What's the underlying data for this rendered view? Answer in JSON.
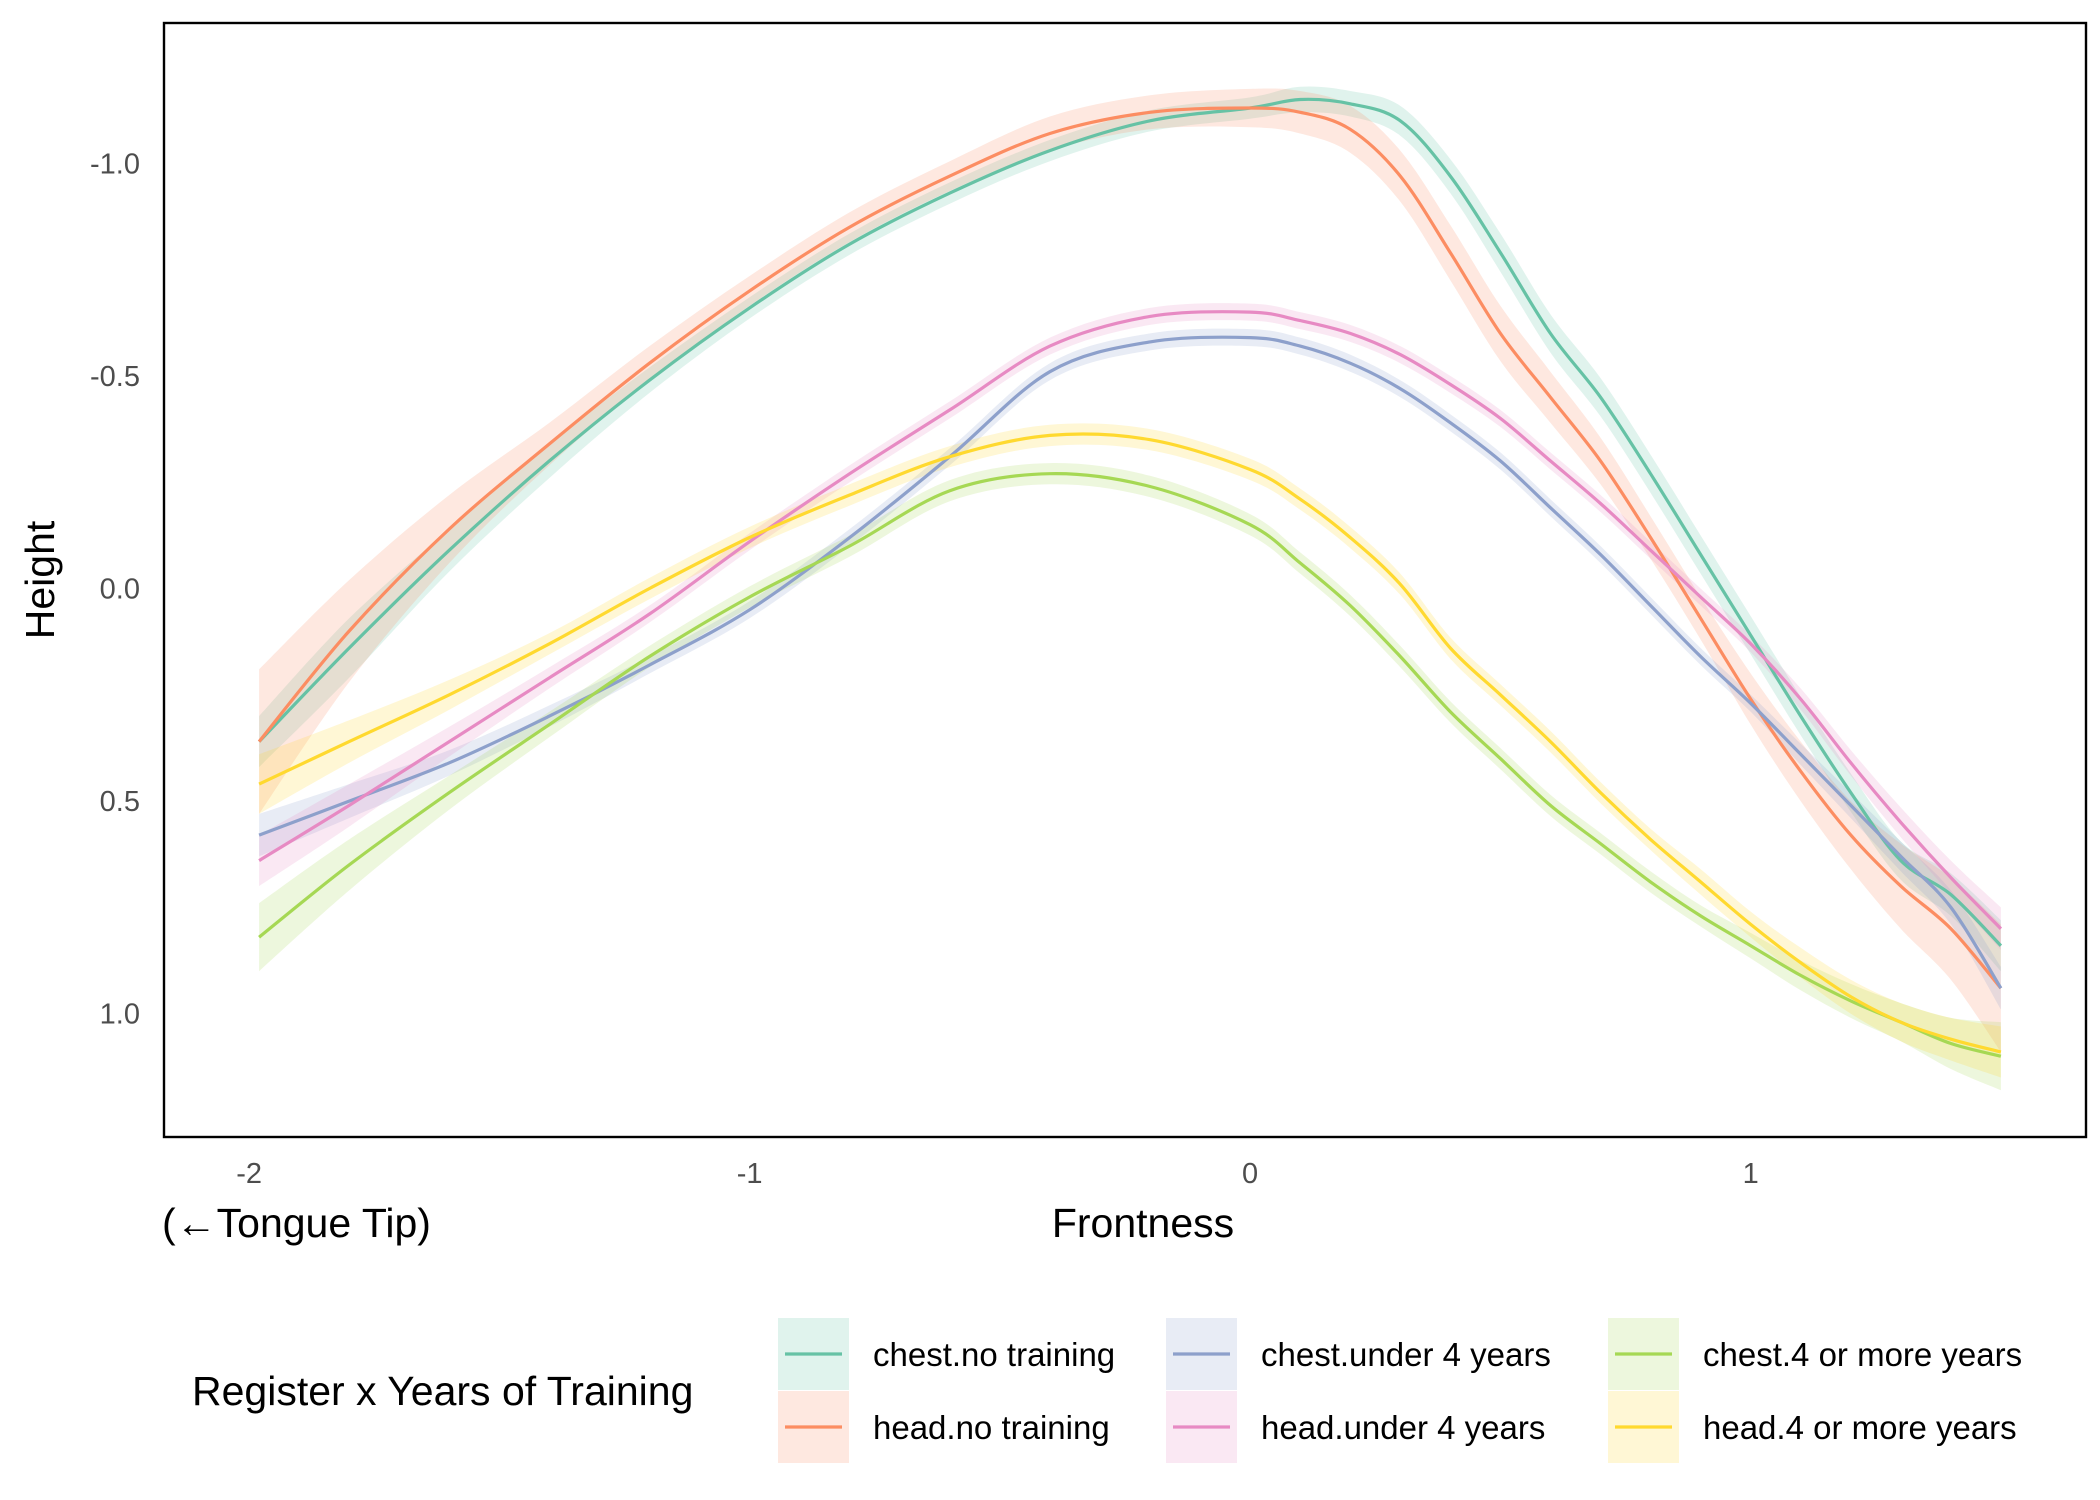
{
  "chart_data": {
    "type": "line",
    "xlabel": "Frontness",
    "x_annotation": "(←Tongue Tip)",
    "ylabel": "Height",
    "xlim": [
      -2.17,
      1.67
    ],
    "ylim": [
      1.29,
      -1.33
    ],
    "y_reversed": true,
    "x_ticks": [
      -2,
      -1,
      0,
      1
    ],
    "x_tick_labels": [
      "-2",
      "-1",
      "0",
      "1"
    ],
    "y_ticks": [
      -1.0,
      -0.5,
      0.0,
      0.5,
      1.0
    ],
    "y_tick_labels": [
      "-1.0",
      "-0.5",
      "0.0",
      "0.5",
      "1.0"
    ],
    "grid": false,
    "legend": {
      "title": "Register x Years of Training",
      "position": "bottom",
      "columns": 3
    },
    "series": [
      {
        "name": "chest.no training",
        "color": "#66c2a5",
        "x": [
          -1.98,
          -1.8,
          -1.6,
          -1.4,
          -1.2,
          -1.0,
          -0.8,
          -0.6,
          -0.4,
          -0.2,
          0.0,
          0.1,
          0.2,
          0.3,
          0.4,
          0.5,
          0.6,
          0.7,
          0.8,
          0.9,
          1.0,
          1.1,
          1.2,
          1.3,
          1.4,
          1.5
        ],
        "y": [
          0.36,
          0.14,
          -0.09,
          -0.3,
          -0.49,
          -0.66,
          -0.81,
          -0.93,
          -1.03,
          -1.1,
          -1.13,
          -1.15,
          -1.14,
          -1.1,
          -0.97,
          -0.79,
          -0.6,
          -0.45,
          -0.27,
          -0.08,
          0.11,
          0.3,
          0.48,
          0.64,
          0.72,
          0.84
        ],
        "band": [
          0.06,
          0.07,
          0.05,
          0.04,
          0.03,
          0.025,
          0.025,
          0.025,
          0.025,
          0.025,
          0.025,
          0.03,
          0.03,
          0.035,
          0.04,
          0.045,
          0.045,
          0.045,
          0.045,
          0.045,
          0.045,
          0.045,
          0.045,
          0.045,
          0.05,
          0.06
        ]
      },
      {
        "name": "head.no training",
        "color": "#fc8d62",
        "x": [
          -1.98,
          -1.8,
          -1.6,
          -1.4,
          -1.2,
          -1.0,
          -0.8,
          -0.6,
          -0.4,
          -0.2,
          0.0,
          0.1,
          0.2,
          0.3,
          0.4,
          0.5,
          0.6,
          0.7,
          0.8,
          0.9,
          1.0,
          1.1,
          1.2,
          1.3,
          1.4,
          1.5
        ],
        "y": [
          0.36,
          0.1,
          -0.14,
          -0.34,
          -0.53,
          -0.7,
          -0.85,
          -0.97,
          -1.07,
          -1.12,
          -1.13,
          -1.12,
          -1.08,
          -0.97,
          -0.79,
          -0.6,
          -0.45,
          -0.3,
          -0.12,
          0.07,
          0.26,
          0.43,
          0.58,
          0.7,
          0.8,
          0.94
        ],
        "band": [
          0.17,
          0.12,
          0.08,
          0.05,
          0.04,
          0.035,
          0.035,
          0.035,
          0.04,
          0.04,
          0.045,
          0.05,
          0.055,
          0.06,
          0.065,
          0.065,
          0.06,
          0.055,
          0.05,
          0.05,
          0.06,
          0.07,
          0.08,
          0.1,
          0.12,
          0.15
        ]
      },
      {
        "name": "chest.under 4 years",
        "color": "#8da0cb",
        "x": [
          -1.98,
          -1.8,
          -1.6,
          -1.4,
          -1.2,
          -1.0,
          -0.8,
          -0.6,
          -0.4,
          -0.2,
          0.0,
          0.1,
          0.2,
          0.3,
          0.4,
          0.5,
          0.6,
          0.7,
          0.8,
          0.9,
          1.0,
          1.1,
          1.2,
          1.3,
          1.4,
          1.5
        ],
        "y": [
          0.58,
          0.5,
          0.41,
          0.3,
          0.18,
          0.05,
          -0.12,
          -0.31,
          -0.51,
          -0.58,
          -0.59,
          -0.57,
          -0.53,
          -0.47,
          -0.39,
          -0.3,
          -0.19,
          -0.08,
          0.04,
          0.16,
          0.27,
          0.39,
          0.51,
          0.63,
          0.75,
          0.94
        ],
        "band": [
          0.05,
          0.04,
          0.03,
          0.025,
          0.02,
          0.02,
          0.02,
          0.02,
          0.02,
          0.02,
          0.02,
          0.02,
          0.02,
          0.02,
          0.02,
          0.02,
          0.02,
          0.02,
          0.02,
          0.02,
          0.02,
          0.025,
          0.03,
          0.035,
          0.04,
          0.05
        ]
      },
      {
        "name": "head.under 4 years",
        "color": "#e78ac3",
        "x": [
          -1.98,
          -1.8,
          -1.6,
          -1.4,
          -1.2,
          -1.0,
          -0.8,
          -0.6,
          -0.4,
          -0.2,
          0.0,
          0.1,
          0.2,
          0.3,
          0.4,
          0.5,
          0.6,
          0.7,
          0.8,
          0.9,
          1.0,
          1.1,
          1.2,
          1.3,
          1.4,
          1.5
        ],
        "y": [
          0.64,
          0.51,
          0.36,
          0.21,
          0.06,
          -0.11,
          -0.27,
          -0.42,
          -0.57,
          -0.64,
          -0.65,
          -0.63,
          -0.6,
          -0.55,
          -0.48,
          -0.4,
          -0.3,
          -0.2,
          -0.09,
          0.02,
          0.13,
          0.26,
          0.41,
          0.55,
          0.68,
          0.8
        ],
        "band": [
          0.06,
          0.05,
          0.035,
          0.025,
          0.02,
          0.02,
          0.02,
          0.02,
          0.02,
          0.02,
          0.02,
          0.02,
          0.02,
          0.02,
          0.02,
          0.02,
          0.02,
          0.02,
          0.02,
          0.02,
          0.02,
          0.025,
          0.03,
          0.035,
          0.04,
          0.05
        ]
      },
      {
        "name": "chest.4 or more years",
        "color": "#a6d854",
        "x": [
          -1.98,
          -1.8,
          -1.6,
          -1.4,
          -1.2,
          -1.0,
          -0.8,
          -0.6,
          -0.4,
          -0.2,
          0.0,
          0.1,
          0.2,
          0.3,
          0.4,
          0.5,
          0.6,
          0.7,
          0.8,
          0.9,
          1.0,
          1.1,
          1.2,
          1.3,
          1.4,
          1.5
        ],
        "y": [
          0.82,
          0.65,
          0.48,
          0.32,
          0.16,
          0.02,
          -0.1,
          -0.23,
          -0.27,
          -0.24,
          -0.15,
          -0.06,
          0.04,
          0.16,
          0.29,
          0.4,
          0.51,
          0.6,
          0.69,
          0.77,
          0.84,
          0.91,
          0.97,
          1.02,
          1.07,
          1.1
        ],
        "band": [
          0.08,
          0.06,
          0.04,
          0.03,
          0.025,
          0.025,
          0.025,
          0.025,
          0.025,
          0.025,
          0.025,
          0.025,
          0.025,
          0.025,
          0.025,
          0.025,
          0.025,
          0.025,
          0.025,
          0.025,
          0.03,
          0.035,
          0.04,
          0.045,
          0.06,
          0.08
        ]
      },
      {
        "name": "head.4 or more years",
        "color": "#ffd92f",
        "x": [
          -1.98,
          -1.8,
          -1.6,
          -1.4,
          -1.2,
          -1.0,
          -0.8,
          -0.6,
          -0.4,
          -0.2,
          0.0,
          0.1,
          0.2,
          0.3,
          0.4,
          0.5,
          0.6,
          0.7,
          0.8,
          0.9,
          1.0,
          1.1,
          1.2,
          1.3,
          1.4,
          1.5
        ],
        "y": [
          0.46,
          0.36,
          0.25,
          0.13,
          0.0,
          -0.12,
          -0.22,
          -0.31,
          -0.36,
          -0.35,
          -0.28,
          -0.21,
          -0.12,
          -0.01,
          0.14,
          0.25,
          0.36,
          0.48,
          0.59,
          0.69,
          0.79,
          0.88,
          0.96,
          1.02,
          1.06,
          1.09
        ],
        "band": [
          0.07,
          0.05,
          0.035,
          0.025,
          0.025,
          0.025,
          0.025,
          0.025,
          0.025,
          0.025,
          0.025,
          0.025,
          0.025,
          0.025,
          0.025,
          0.025,
          0.025,
          0.025,
          0.025,
          0.03,
          0.03,
          0.035,
          0.04,
          0.045,
          0.05,
          0.06
        ]
      }
    ]
  }
}
